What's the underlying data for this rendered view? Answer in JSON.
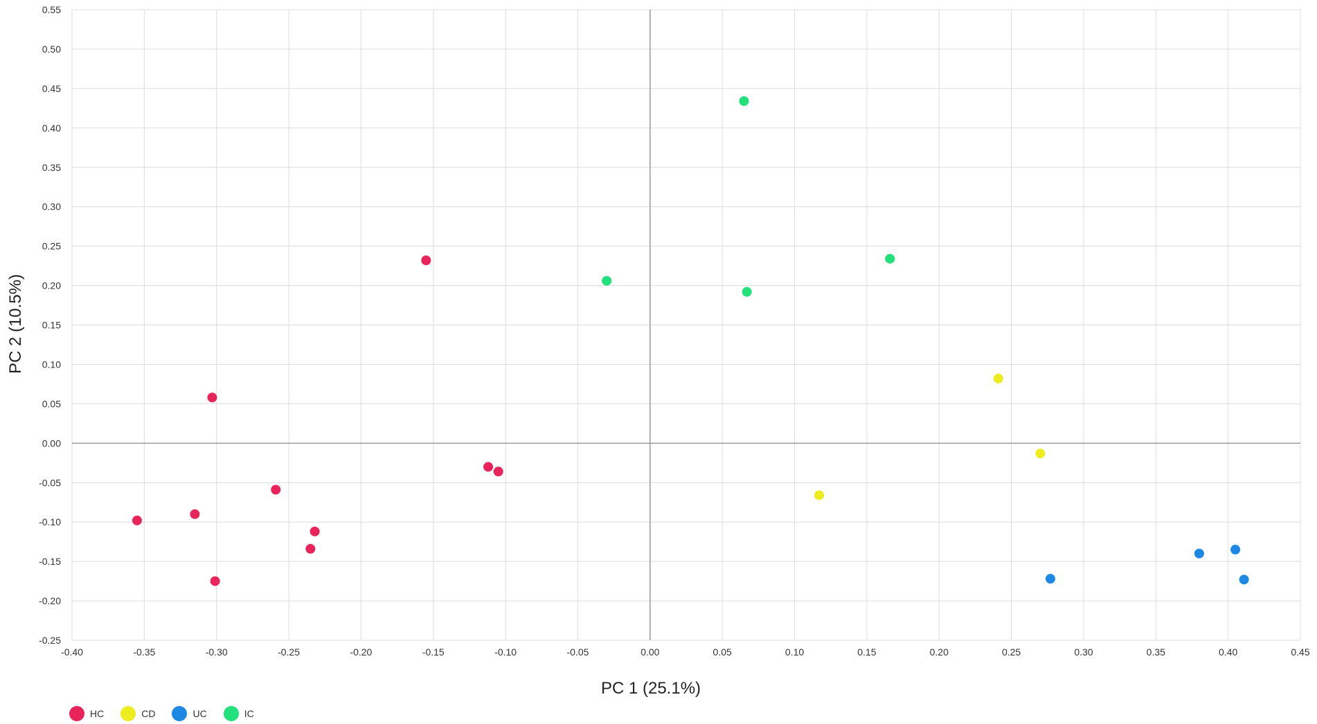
{
  "chart_data": {
    "type": "scatter",
    "title": "",
    "xlabel": "PC 1 (25.1%)",
    "ylabel": "PC 2 (10.5%)",
    "xlim": [
      -0.4,
      0.45
    ],
    "ylim": [
      -0.25,
      0.55
    ],
    "xticks": [
      "-0.40",
      "-0.35",
      "-0.30",
      "-0.25",
      "-0.20",
      "-0.15",
      "-0.10",
      "-0.05",
      "0.00",
      "0.05",
      "0.10",
      "0.15",
      "0.20",
      "0.25",
      "0.30",
      "0.35",
      "0.40",
      "0.45"
    ],
    "yticks": [
      "0.55",
      "0.50",
      "0.45",
      "0.40",
      "0.35",
      "0.30",
      "0.25",
      "0.20",
      "0.15",
      "0.10",
      "0.05",
      "0.00",
      "-0.05",
      "-0.10",
      "-0.15",
      "-0.20",
      "-0.25"
    ],
    "grid": true,
    "legend_position": "bottom-left",
    "series": [
      {
        "name": "HC",
        "color": "#e8245a",
        "points": [
          [
            -0.155,
            0.232
          ],
          [
            -0.303,
            0.058
          ],
          [
            -0.112,
            -0.03
          ],
          [
            -0.105,
            -0.036
          ],
          [
            -0.259,
            -0.059
          ],
          [
            -0.355,
            -0.098
          ],
          [
            -0.315,
            -0.09
          ],
          [
            -0.232,
            -0.112
          ],
          [
            -0.235,
            -0.134
          ],
          [
            -0.301,
            -0.175
          ]
        ]
      },
      {
        "name": "CD",
        "color": "#ecec1e",
        "points": [
          [
            0.241,
            0.082
          ],
          [
            0.27,
            -0.013
          ],
          [
            0.117,
            -0.066
          ]
        ]
      },
      {
        "name": "UC",
        "color": "#1e88e5",
        "points": [
          [
            0.38,
            -0.14
          ],
          [
            0.405,
            -0.135
          ],
          [
            0.277,
            -0.172
          ],
          [
            0.411,
            -0.173
          ]
        ]
      },
      {
        "name": "IC",
        "color": "#22e07a",
        "points": [
          [
            0.065,
            0.434
          ],
          [
            -0.03,
            0.206
          ],
          [
            0.067,
            0.192
          ],
          [
            0.166,
            0.234
          ]
        ]
      }
    ]
  }
}
